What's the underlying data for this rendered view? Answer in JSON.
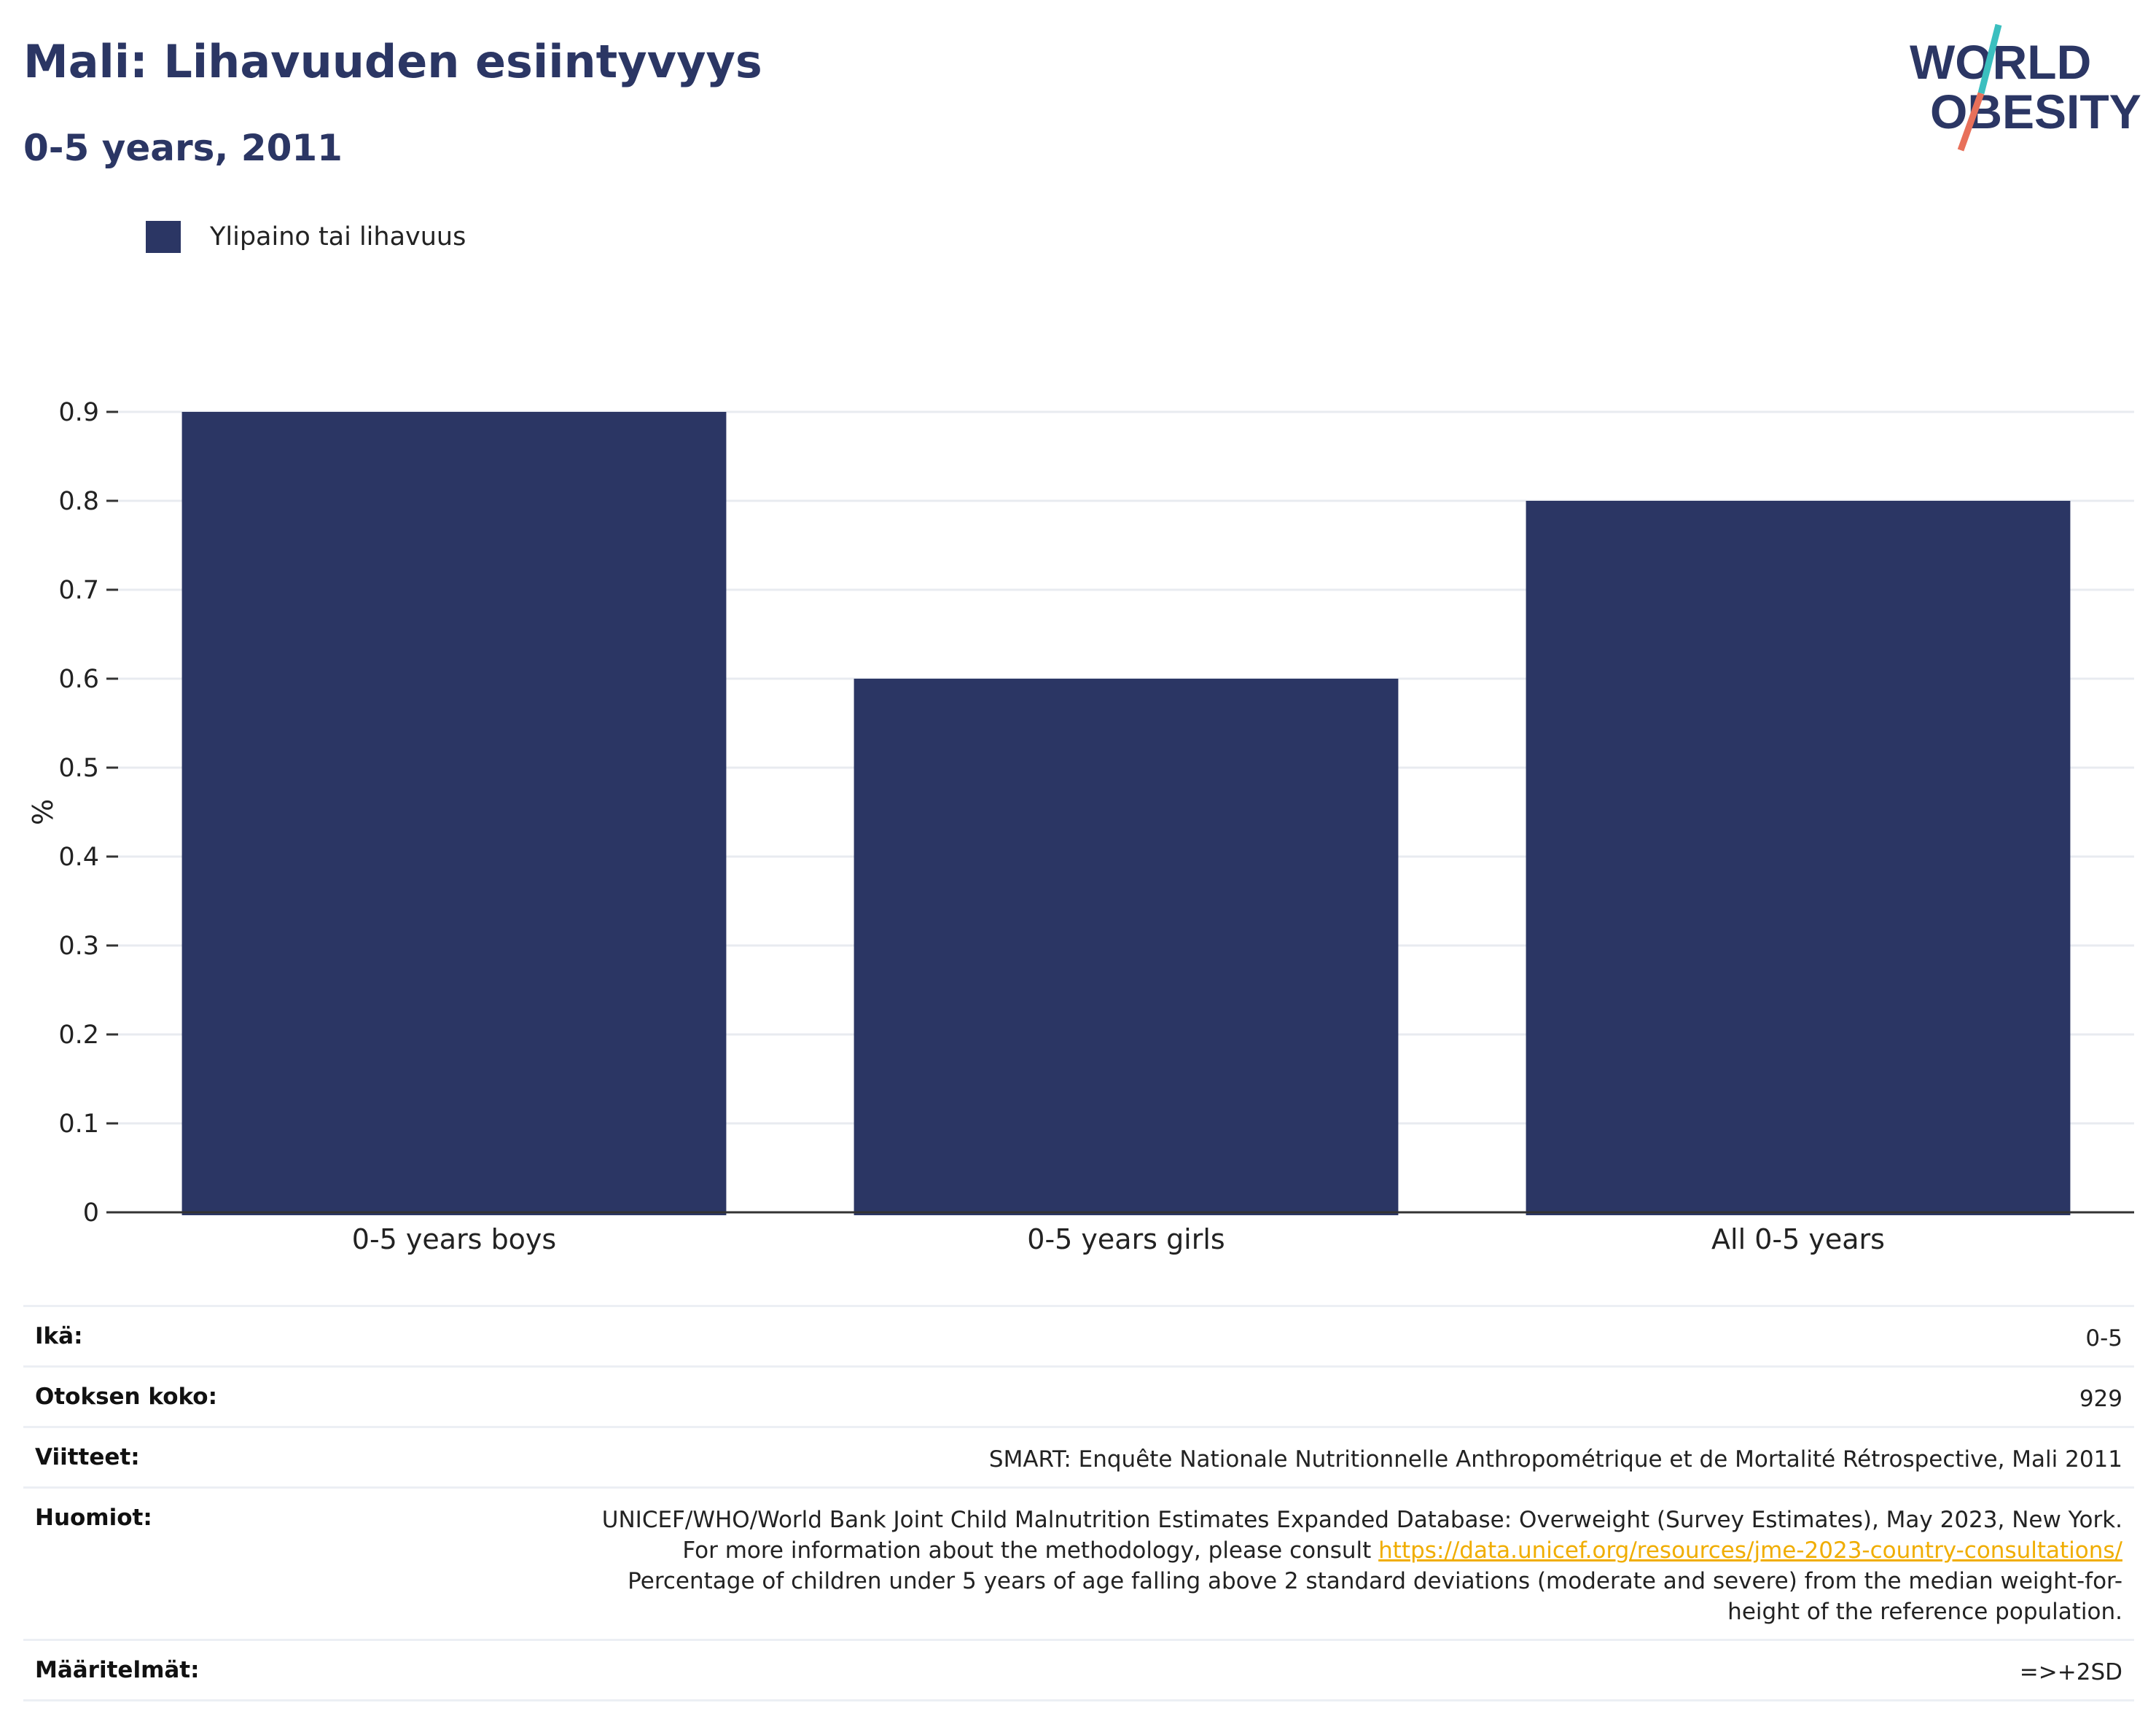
{
  "header": {
    "title": "Mali: Lihavuuden esiintyvyys",
    "subtitle": "0-5 years, 2011"
  },
  "logo": {
    "line1": "WORLD",
    "line2": "OBESITY",
    "text_color": "#2b3664",
    "slash_colors": [
      "#3bbfbf",
      "#e8705a"
    ]
  },
  "legend": {
    "items": [
      {
        "label": "Ylipaino tai lihavuus",
        "color": "#2b3664"
      }
    ]
  },
  "chart_data": {
    "type": "bar",
    "categories": [
      "0-5 years boys",
      "0-5 years girls",
      "All 0-5 years"
    ],
    "series": [
      {
        "name": "Ylipaino tai lihavuus",
        "values": [
          0.9,
          0.6,
          0.8
        ],
        "color": "#2b3664"
      }
    ],
    "ylabel": "%",
    "ylim": [
      0,
      0.9
    ],
    "yticks": [
      "0",
      "0.1",
      "0.2",
      "0.3",
      "0.4",
      "0.5",
      "0.6",
      "0.7",
      "0.8",
      "0.9"
    ],
    "grid": true,
    "legend_position": "top-left"
  },
  "info": {
    "age": {
      "label": "Ikä:",
      "value": "0-5"
    },
    "sample": {
      "label": "Otoksen koko:",
      "value": "929"
    },
    "references": {
      "label": "Viitteet:",
      "value": "SMART: Enquête Nationale Nutritionnelle Anthropométrique et de Mortalité Rétrospective, Mali 2011"
    },
    "notes": {
      "label": "Huomiot:",
      "text_before": "UNICEF/WHO/World Bank Joint Child Malnutrition Estimates Expanded Database: Overweight (Survey Estimates), May 2023, New York. For more information about the methodology, please consult ",
      "link": "https://data.unicef.org/resources/jme-2023-country-consultations/",
      "text_after": "Percentage of children under 5 years of age falling above 2 standard deviations (moderate and severe) from the median weight-for-height of the reference population."
    },
    "definitions": {
      "label": "Määritelmät:",
      "value": "=>+2SD"
    }
  }
}
